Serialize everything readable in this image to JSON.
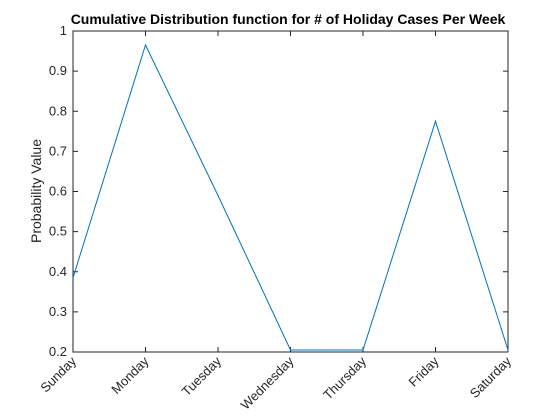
{
  "chart_data": {
    "type": "line",
    "title": "Cumulative Distribution function for # of Holiday Cases Per Week",
    "xlabel": "",
    "ylabel": "Probability Value",
    "categories": [
      "Sunday",
      "Monday",
      "Tuesday",
      "Wednesday",
      "Thursday",
      "Friday",
      "Saturday"
    ],
    "values": [
      0.385,
      0.965,
      0.59,
      0.205,
      0.205,
      0.775,
      0.205
    ],
    "ylim": [
      0.2,
      1
    ],
    "yticks": [
      0.2,
      0.3,
      0.4,
      0.5,
      0.6,
      0.7,
      0.8,
      0.9,
      1
    ],
    "ytick_labels": [
      "0.2",
      "0.3",
      "0.4",
      "0.5",
      "0.6",
      "0.7",
      "0.8",
      "0.9",
      "1"
    ],
    "grid": false,
    "box": true,
    "line_color": "#0072BD",
    "axis_color": "#262626"
  }
}
